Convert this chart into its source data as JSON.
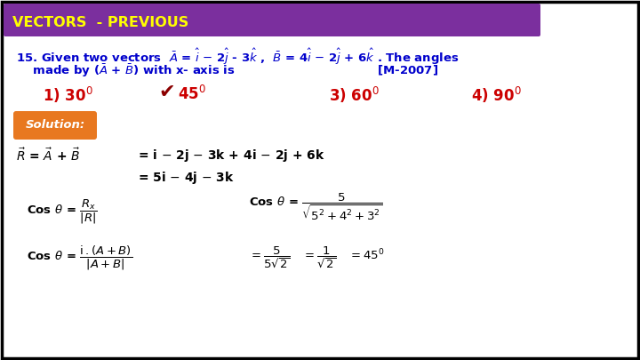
{
  "title": "VECTORS  - PREVIOUS",
  "title_bg": "#7B2F9E",
  "title_color": "#FFFF00",
  "bg_color": "#FFFFFF",
  "border_color": "#000000",
  "question_color": "#0000CC",
  "answer_color": "#CC0000",
  "solution_color": "#000000",
  "solution_btn_bg": "#E87820",
  "solution_btn_color": "#FFFFFF"
}
